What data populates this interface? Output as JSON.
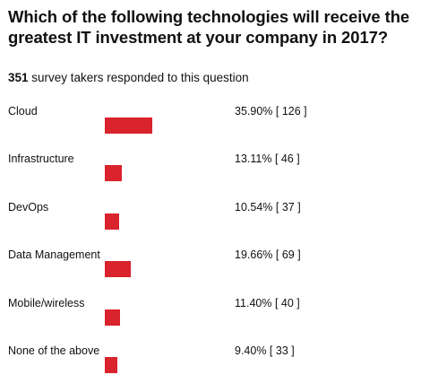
{
  "title": "Which of the following technologies will receive the greatest IT investment at your company in 2017?",
  "respondents": {
    "count": "351",
    "text": " survey takers responded to this question"
  },
  "colors": {
    "bar": "#d9232d",
    "text": "#111111"
  },
  "chart_data": {
    "type": "bar",
    "orientation": "horizontal",
    "categories": [
      "Cloud",
      "Infrastructure",
      "DevOps",
      "Data Management",
      "Mobile/wireless",
      "None of the above"
    ],
    "values": [
      35.9,
      13.11,
      10.54,
      19.66,
      11.4,
      9.4
    ],
    "counts": [
      126,
      46,
      37,
      69,
      40,
      33
    ],
    "labels": [
      "35.90% [ 126 ]",
      "13.11% [ 46 ]",
      "10.54% [ 37 ]",
      "19.66% [ 69 ]",
      "11.40% [ 40 ]",
      "9.40% [ 33 ]"
    ],
    "grid": false,
    "legend": "none"
  }
}
